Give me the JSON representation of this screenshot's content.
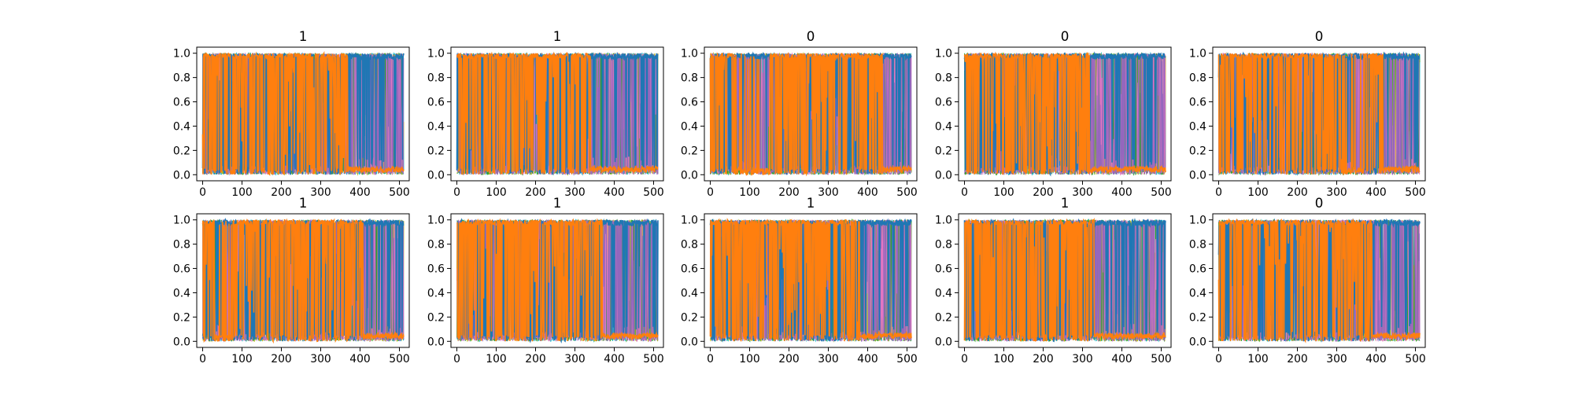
{
  "chart_data": {
    "type": "line",
    "layout": {
      "rows": 2,
      "cols": 5
    },
    "xlim": [
      -15,
      525
    ],
    "ylim": [
      -0.05,
      1.05
    ],
    "x_ticks": [
      0,
      100,
      200,
      300,
      400,
      500
    ],
    "y_ticks": [
      0.0,
      0.2,
      0.4,
      0.6,
      0.8,
      1.0
    ],
    "x_tick_labels": [
      "0",
      "100",
      "200",
      "300",
      "400",
      "500"
    ],
    "y_tick_labels": [
      "0.0",
      "0.2",
      "0.4",
      "0.6",
      "0.8",
      "1.0"
    ],
    "grid": false,
    "legend": "none",
    "series_colors": {
      "blue": "#1f77b4",
      "orange": "#ff7f0e",
      "cyan": "#17becf",
      "olive": "#bcbd22",
      "green": "#2ca02c",
      "pink": "#e377c2",
      "purple": "#9467bd"
    },
    "panels": [
      {
        "title": "1",
        "orange_dominant_until": 370,
        "blue_band": []
      },
      {
        "title": "1",
        "orange_dominant_until": 340,
        "blue_band": []
      },
      {
        "title": "0",
        "orange_dominant_until": 440,
        "blue_band": [
          60,
          150
        ]
      },
      {
        "title": "0",
        "orange_dominant_until": 320,
        "blue_band": []
      },
      {
        "title": "0",
        "orange_dominant_until": 420,
        "blue_band": [
          320,
          370
        ]
      },
      {
        "title": "1",
        "orange_dominant_until": 410,
        "blue_band": [
          30,
          75
        ]
      },
      {
        "title": "1",
        "orange_dominant_until": 370,
        "blue_band": []
      },
      {
        "title": "1",
        "orange_dominant_until": 380,
        "blue_band": []
      },
      {
        "title": "1",
        "orange_dominant_until": 330,
        "blue_band": []
      },
      {
        "title": "0",
        "orange_dominant_until": 390,
        "blue_band": []
      }
    ]
  }
}
